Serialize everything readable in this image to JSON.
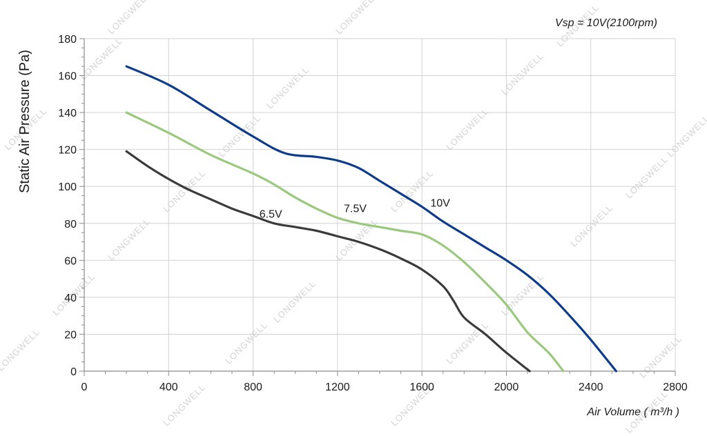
{
  "chart_data": {
    "type": "line",
    "title": "",
    "annotation": "Vsp = 10V(2100rpm)",
    "xlabel": "Air Volume ( m³/h )",
    "ylabel": "Static Air Pressure  (Pa)",
    "xlim": [
      0,
      2800
    ],
    "ylim": [
      0,
      180
    ],
    "x_ticks": [
      "0",
      "400",
      "800",
      "1200",
      "1600",
      "2000",
      "2400",
      "2800"
    ],
    "y_ticks": [
      "0",
      "20",
      "40",
      "60",
      "80",
      "100",
      "120",
      "140",
      "160",
      "180"
    ],
    "grid": true,
    "legend": "none",
    "watermark": "LONGWELL",
    "series": [
      {
        "name": "10V",
        "color": "#0d3b8c",
        "points": [
          [
            200,
            165
          ],
          [
            400,
            155
          ],
          [
            600,
            141
          ],
          [
            800,
            127
          ],
          [
            950,
            118
          ],
          [
            1100,
            116
          ],
          [
            1200,
            114
          ],
          [
            1300,
            110
          ],
          [
            1400,
            103
          ],
          [
            1500,
            96
          ],
          [
            1600,
            89
          ],
          [
            1700,
            81
          ],
          [
            1800,
            74
          ],
          [
            1900,
            67
          ],
          [
            2000,
            60
          ],
          [
            2100,
            52
          ],
          [
            2200,
            42
          ],
          [
            2300,
            30
          ],
          [
            2400,
            17
          ],
          [
            2520,
            0
          ]
        ]
      },
      {
        "name": "7.5V",
        "color": "#99c97c",
        "points": [
          [
            200,
            140
          ],
          [
            400,
            129
          ],
          [
            600,
            117
          ],
          [
            800,
            107
          ],
          [
            900,
            101
          ],
          [
            1000,
            94
          ],
          [
            1100,
            88
          ],
          [
            1200,
            83
          ],
          [
            1300,
            80
          ],
          [
            1400,
            78
          ],
          [
            1500,
            76
          ],
          [
            1600,
            74
          ],
          [
            1700,
            68
          ],
          [
            1800,
            59
          ],
          [
            1900,
            48
          ],
          [
            2000,
            36
          ],
          [
            2100,
            21
          ],
          [
            2200,
            10
          ],
          [
            2270,
            0
          ]
        ]
      },
      {
        "name": "6.5V",
        "color": "#3a3a3a",
        "points": [
          [
            200,
            119
          ],
          [
            300,
            111
          ],
          [
            400,
            104
          ],
          [
            500,
            98
          ],
          [
            600,
            93
          ],
          [
            700,
            88
          ],
          [
            800,
            84
          ],
          [
            900,
            80
          ],
          [
            1000,
            78
          ],
          [
            1100,
            76
          ],
          [
            1200,
            73
          ],
          [
            1300,
            70
          ],
          [
            1400,
            66
          ],
          [
            1500,
            61
          ],
          [
            1600,
            55
          ],
          [
            1700,
            46
          ],
          [
            1750,
            38
          ],
          [
            1800,
            29
          ],
          [
            1900,
            20
          ],
          [
            2000,
            10
          ],
          [
            2110,
            0
          ]
        ]
      }
    ],
    "series_labels": [
      {
        "text": "6.5V",
        "x": 830,
        "y": 83
      },
      {
        "text": "7.5V",
        "x": 1230,
        "y": 86
      },
      {
        "text": "10V",
        "x": 1640,
        "y": 89
      }
    ]
  }
}
